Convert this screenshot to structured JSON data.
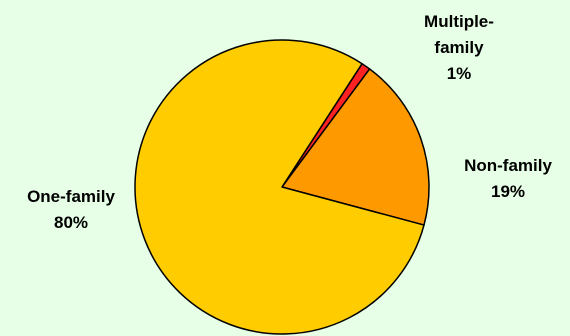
{
  "colors": {
    "background": "#e6ffe6",
    "outline": "#000000"
  },
  "chart_data": {
    "type": "pie",
    "title": "",
    "start_angle_deg": 57,
    "direction": "clockwise",
    "slices": [
      {
        "label": "Multiple-family",
        "value": 1,
        "value_label": "1%",
        "color": "#ff2222"
      },
      {
        "label": "Non-family",
        "value": 19,
        "value_label": "19%",
        "color": "#ff9900"
      },
      {
        "label": "One-family",
        "value": 80,
        "value_label": "80%",
        "color": "#ffcc00"
      }
    ]
  }
}
